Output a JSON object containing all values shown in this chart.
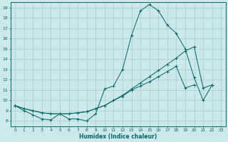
{
  "xlabel": "Humidex (Indice chaleur)",
  "xlim": [
    -0.5,
    23.5
  ],
  "ylim": [
    7.5,
    19.5
  ],
  "xticks": [
    0,
    1,
    2,
    3,
    4,
    5,
    6,
    7,
    8,
    9,
    10,
    11,
    12,
    13,
    14,
    15,
    16,
    17,
    18,
    19,
    20,
    21,
    22,
    23
  ],
  "yticks": [
    8,
    9,
    10,
    11,
    12,
    13,
    14,
    15,
    16,
    17,
    18,
    19
  ],
  "line_color": "#006666",
  "bg_color": "#cce8e8",
  "grid_color": "#aacece",
  "series1_x": [
    0,
    1,
    2,
    3,
    4,
    5,
    6,
    7,
    8,
    9,
    10,
    11,
    12,
    13,
    14,
    15,
    16,
    17,
    18,
    19,
    20,
    21,
    22
  ],
  "series1_y": [
    9.5,
    9.0,
    8.6,
    8.2,
    8.1,
    8.7,
    8.2,
    8.2,
    8.0,
    8.7,
    11.1,
    11.4,
    13.0,
    16.3,
    18.7,
    19.3,
    18.7,
    17.3,
    16.5,
    15.0,
    12.2,
    10.0,
    11.5
  ],
  "series2_x": [
    0,
    1,
    2,
    3,
    4,
    5,
    6,
    7,
    8,
    9,
    10,
    11,
    12,
    13,
    14,
    15,
    16,
    17,
    18,
    19,
    20,
    21,
    22
  ],
  "series2_y": [
    9.5,
    9.2,
    9.0,
    8.8,
    8.7,
    8.7,
    8.7,
    8.8,
    8.9,
    9.2,
    9.5,
    10.0,
    10.5,
    11.1,
    11.7,
    12.3,
    12.9,
    13.5,
    14.1,
    14.8,
    15.2,
    11.2,
    11.5
  ],
  "series3_x": [
    0,
    1,
    2,
    3,
    4,
    5,
    6,
    7,
    8,
    9,
    10,
    11,
    12,
    13,
    14,
    15,
    16,
    17,
    18,
    19,
    20,
    21,
    22
  ],
  "series3_y": [
    9.5,
    9.2,
    9.0,
    8.8,
    8.7,
    8.7,
    8.7,
    8.8,
    8.9,
    9.2,
    9.5,
    10.0,
    10.4,
    11.0,
    11.4,
    11.8,
    12.3,
    12.8,
    13.3,
    11.2,
    11.5,
    null,
    null
  ]
}
